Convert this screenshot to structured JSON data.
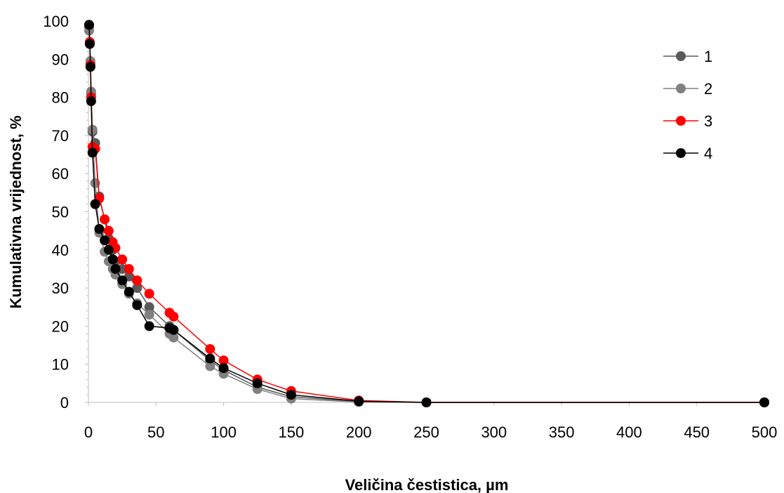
{
  "chart_data": {
    "type": "line",
    "title": "",
    "xlabel": "Veličina čestistica, µm",
    "ylabel": "Kumulativna vrijednost, %",
    "xlim": [
      0,
      500
    ],
    "ylim": [
      0,
      100
    ],
    "xticks": [
      0,
      50,
      100,
      150,
      200,
      250,
      300,
      350,
      400,
      450,
      500
    ],
    "yticks": [
      0,
      10,
      20,
      30,
      40,
      50,
      60,
      70,
      80,
      90,
      100
    ],
    "grid": false,
    "legend_position": "top-right",
    "series": [
      {
        "name": "1",
        "color": "#595959",
        "points": [
          [
            0.5,
            98.5
          ],
          [
            1,
            94.5
          ],
          [
            1.5,
            89
          ],
          [
            2,
            81
          ],
          [
            3,
            71
          ],
          [
            5,
            68
          ],
          [
            8,
            54
          ],
          [
            12,
            48
          ],
          [
            15,
            43
          ],
          [
            18,
            40
          ],
          [
            20,
            37
          ],
          [
            25,
            35
          ],
          [
            30,
            33
          ],
          [
            36,
            30
          ],
          [
            45,
            25
          ],
          [
            60,
            20
          ],
          [
            63,
            19
          ],
          [
            90,
            11
          ],
          [
            100,
            8.5
          ],
          [
            125,
            4
          ],
          [
            150,
            1.5
          ],
          [
            200,
            0.2
          ],
          [
            250,
            0
          ],
          [
            500,
            0
          ]
        ]
      },
      {
        "name": "2",
        "color": "#808080",
        "points": [
          [
            0.5,
            97.5
          ],
          [
            1,
            94
          ],
          [
            1.5,
            89.5
          ],
          [
            2,
            81.5
          ],
          [
            3,
            71.5
          ],
          [
            5,
            57.5
          ],
          [
            8,
            44.5
          ],
          [
            12,
            39.5
          ],
          [
            15,
            37
          ],
          [
            18,
            35
          ],
          [
            20,
            33.5
          ],
          [
            25,
            31
          ],
          [
            30,
            28.5
          ],
          [
            36,
            26
          ],
          [
            45,
            23
          ],
          [
            60,
            18
          ],
          [
            63,
            17
          ],
          [
            90,
            9.5
          ],
          [
            100,
            7.5
          ],
          [
            125,
            3.5
          ],
          [
            150,
            1
          ],
          [
            200,
            0.1
          ],
          [
            250,
            0
          ],
          [
            500,
            0
          ]
        ]
      },
      {
        "name": "3",
        "color": "#ff0000",
        "points": [
          [
            0.5,
            99
          ],
          [
            1,
            94.5
          ],
          [
            1.5,
            88.5
          ],
          [
            2,
            80
          ],
          [
            3,
            67
          ],
          [
            5,
            66.5
          ],
          [
            8,
            53.5
          ],
          [
            12,
            48
          ],
          [
            15,
            45
          ],
          [
            18,
            42
          ],
          [
            20,
            40.5
          ],
          [
            25,
            37.5
          ],
          [
            30,
            35
          ],
          [
            36,
            32
          ],
          [
            45,
            28.5
          ],
          [
            60,
            23.5
          ],
          [
            63,
            22.5
          ],
          [
            90,
            14
          ],
          [
            100,
            11
          ],
          [
            125,
            6
          ],
          [
            150,
            3
          ],
          [
            200,
            0.5
          ],
          [
            250,
            0
          ],
          [
            500,
            0
          ]
        ]
      },
      {
        "name": "4",
        "color": "#000000",
        "points": [
          [
            0.5,
            99
          ],
          [
            1,
            94
          ],
          [
            1.5,
            88
          ],
          [
            2,
            79
          ],
          [
            3,
            65.5
          ],
          [
            5,
            52
          ],
          [
            8,
            45.5
          ],
          [
            12,
            42.5
          ],
          [
            15,
            40
          ],
          [
            18,
            37.5
          ],
          [
            20,
            35
          ],
          [
            25,
            32
          ],
          [
            30,
            29
          ],
          [
            36,
            25.5
          ],
          [
            45,
            20
          ],
          [
            60,
            19.5
          ],
          [
            63,
            19
          ],
          [
            90,
            11.5
          ],
          [
            100,
            9
          ],
          [
            125,
            5
          ],
          [
            150,
            2
          ],
          [
            200,
            0.3
          ],
          [
            250,
            0
          ],
          [
            500,
            0
          ]
        ]
      }
    ]
  }
}
